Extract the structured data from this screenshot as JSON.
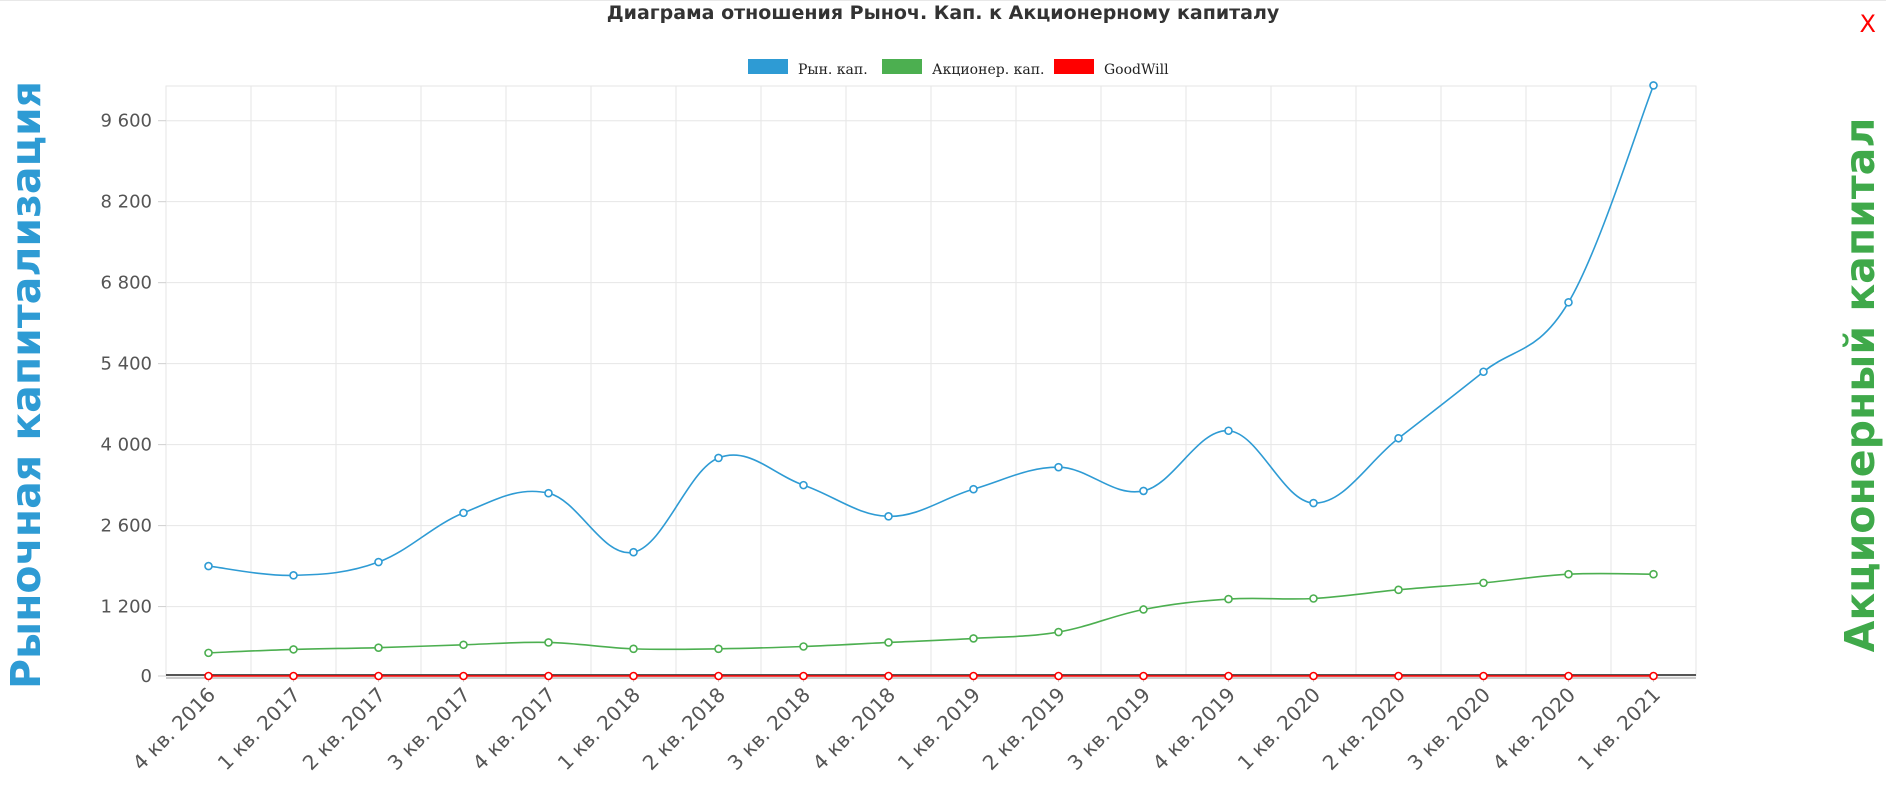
{
  "header": {
    "title": "Диаграма отношения Рыноч. Кап. к Акционерному капиталу",
    "close_label": "X"
  },
  "axes": {
    "left_title": "Рыночная капитализация",
    "right_title": "Акционерный капитал"
  },
  "colors": {
    "market_cap": "#2e9bd4",
    "equity": "#4caf50",
    "goodwill": "#ff0000",
    "left_title": "#2e9bd4",
    "right_title": "#3fa94a"
  },
  "chart_data": {
    "type": "line",
    "title": "Диаграма отношения Рыноч. Кап. к Акционерному капиталу",
    "xlabel": "",
    "ylabel": "Рыночная капитализация",
    "y2label": "Акционерный капитал",
    "categories": [
      "4 кв. 2016",
      "1 кв. 2017",
      "2 кв. 2017",
      "3 кв. 2017",
      "4 кв. 2017",
      "1 кв. 2018",
      "2 кв. 2018",
      "3 кв. 2018",
      "4 кв. 2018",
      "1 кв. 2019",
      "2 кв. 2019",
      "3 кв. 2019",
      "4 кв. 2019",
      "1 кв. 2020",
      "2 кв. 2020",
      "3 кв. 2020",
      "4 кв. 2020",
      "1 кв. 2021"
    ],
    "y_ticks": [
      0,
      1200,
      2600,
      4000,
      5400,
      6800,
      8200,
      9600
    ],
    "y_tick_labels": [
      "0",
      "1 200",
      "2 600",
      "4 000",
      "5 400",
      "6 800",
      "8 200",
      "9 600"
    ],
    "ylim": [
      0,
      10200
    ],
    "grid": true,
    "legend_position": "top-center",
    "series": [
      {
        "name": "Рын. кап.",
        "color": "#2e9bd4",
        "values": [
          1900,
          1740,
          1970,
          2820,
          3160,
          2140,
          3770,
          3300,
          2760,
          3230,
          3610,
          3200,
          4240,
          2990,
          4110,
          5260,
          6460,
          10210
        ]
      },
      {
        "name": "Акционер. кап.",
        "color": "#4caf50",
        "values": [
          400,
          460,
          490,
          540,
          580,
          470,
          470,
          510,
          580,
          650,
          760,
          1150,
          1330,
          1340,
          1490,
          1610,
          1760,
          1760
        ]
      },
      {
        "name": "GoodWill",
        "color": "#ff0000",
        "values": [
          0,
          0,
          0,
          0,
          0,
          0,
          0,
          0,
          0,
          0,
          0,
          0,
          0,
          0,
          0,
          0,
          0,
          0
        ]
      }
    ]
  }
}
